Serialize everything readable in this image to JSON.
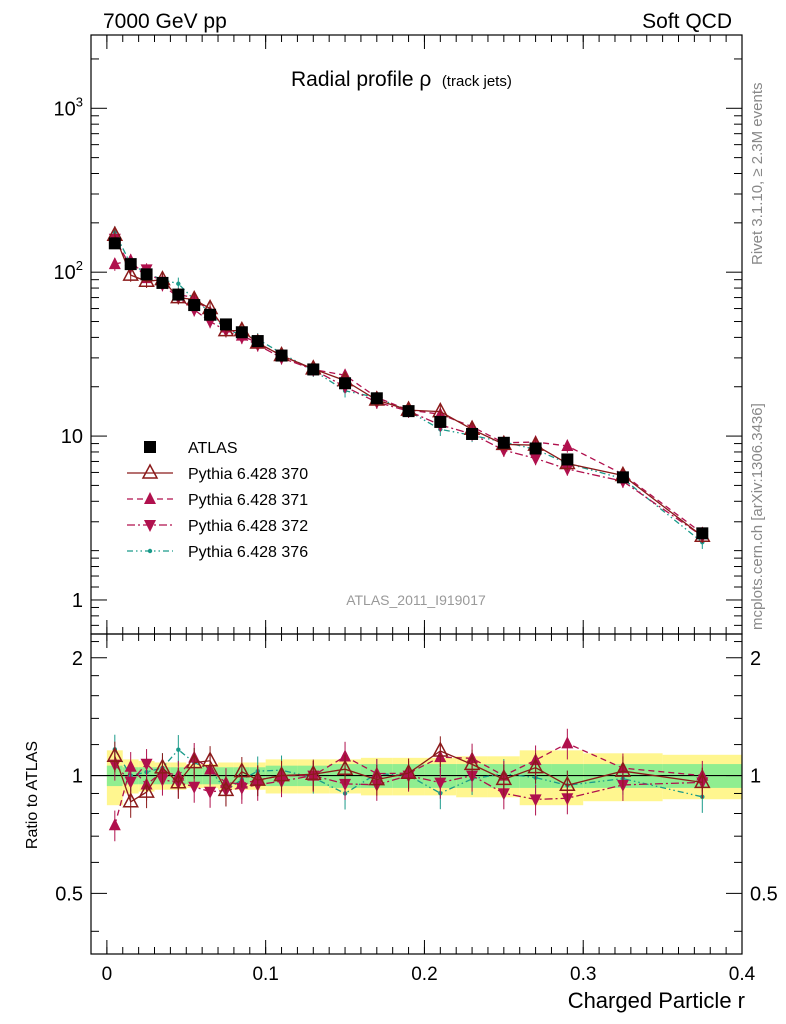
{
  "header": {
    "left": "7000 GeV pp",
    "right": "Soft QCD",
    "side_rivet": "Rivet 3.1.10, ≥ 2.3M events",
    "side_mcplots": "mcplots.cern.ch [arXiv:1306.3436]"
  },
  "chart_data": {
    "type": "line",
    "title": "Radial profile ρ",
    "title_sub": "(track jets)",
    "analysis_tag": "ATLAS_2011_I919017",
    "xlabel": "Charged Particle r",
    "ylabel_ratio": "Ratio to ATLAS",
    "xlim": [
      -0.01,
      0.4
    ],
    "ylim_main": [
      0.62,
      2800
    ],
    "ylim_ratio": [
      0.35,
      2.3
    ],
    "y_log": true,
    "x_ticks": [
      "0",
      "0.1",
      "0.2",
      "0.3",
      "0.4"
    ],
    "main_y_ticks": [
      "1",
      "10",
      "10²",
      "10³"
    ],
    "ratio_y_ticks": [
      "0.5",
      "1",
      "2"
    ],
    "legend_position": "lower-left",
    "x": [
      0.005,
      0.015,
      0.025,
      0.035,
      0.045,
      0.055,
      0.065,
      0.075,
      0.085,
      0.095,
      0.11,
      0.13,
      0.15,
      0.17,
      0.19,
      0.21,
      0.23,
      0.25,
      0.27,
      0.29,
      0.325,
      0.375
    ],
    "x_edges": [
      0,
      0.01,
      0.02,
      0.03,
      0.04,
      0.05,
      0.06,
      0.07,
      0.08,
      0.09,
      0.1,
      0.12,
      0.14,
      0.16,
      0.18,
      0.2,
      0.22,
      0.24,
      0.26,
      0.28,
      0.3,
      0.35,
      0.4
    ],
    "band_inner": [
      0.06,
      0.05,
      0.05,
      0.05,
      0.05,
      0.05,
      0.05,
      0.05,
      0.05,
      0.05,
      0.06,
      0.06,
      0.07,
      0.07,
      0.07,
      0.07,
      0.07,
      0.07,
      0.07,
      0.07,
      0.07,
      0.07
    ],
    "band_outer": [
      0.16,
      0.1,
      0.09,
      0.08,
      0.08,
      0.07,
      0.07,
      0.08,
      0.08,
      0.08,
      0.1,
      0.1,
      0.1,
      0.11,
      0.11,
      0.11,
      0.12,
      0.12,
      0.16,
      0.16,
      0.14,
      0.13
    ],
    "series": [
      {
        "name": "ATLAS",
        "color": "#000000",
        "marker": "square",
        "line": "none",
        "values": [
          150,
          112,
          97,
          86,
          73,
          63,
          55,
          48,
          43,
          38,
          31,
          25.5,
          21,
          17,
          14.2,
          12.2,
          10.3,
          9.1,
          8.4,
          7.2,
          5.6,
          2.55
        ]
      },
      {
        "name": "Pythia 6.428 370",
        "color": "#8b1a1a",
        "marker": "triangle-open",
        "line": "solid",
        "values": [
          168,
          96,
          88,
          90,
          70,
          68,
          60,
          44,
          44,
          37,
          31,
          25.7,
          21.8,
          16.6,
          14.4,
          14.1,
          11,
          8.9,
          8.8,
          6.8,
          5.75,
          2.45
        ]
      },
      {
        "name": "Pythia 6.428 371",
        "color": "#b0104d",
        "marker": "triangle",
        "line": "dashed",
        "values": [
          112,
          118,
          92,
          88,
          73,
          70,
          57,
          46,
          41,
          37,
          31,
          25.5,
          23.5,
          17.2,
          14.4,
          13.6,
          11.4,
          9.1,
          9.2,
          8.7,
          5.85,
          2.55
        ]
      },
      {
        "name": "Pythia 6.428 372",
        "color": "#b0104d",
        "marker": "triangle-down",
        "line": "dashdot",
        "values": [
          160,
          108,
          104,
          84,
          70,
          59,
          50,
          44,
          40,
          36,
          30,
          25.5,
          20,
          16.1,
          14.2,
          11.7,
          10.3,
          8.2,
          7.3,
          6.3,
          5.3,
          2.45
        ]
      },
      {
        "name": "Pythia 6.428 376",
        "color": "#1a9a8a",
        "marker": "dot",
        "line": "dashdotdot",
        "values": [
          175,
          112,
          99,
          90,
          85,
          68,
          57,
          44,
          42,
          39,
          32,
          25.2,
          18.9,
          17.2,
          14.2,
          11,
          10.1,
          9.2,
          8.3,
          6.8,
          5.5,
          2.25
        ]
      }
    ]
  }
}
